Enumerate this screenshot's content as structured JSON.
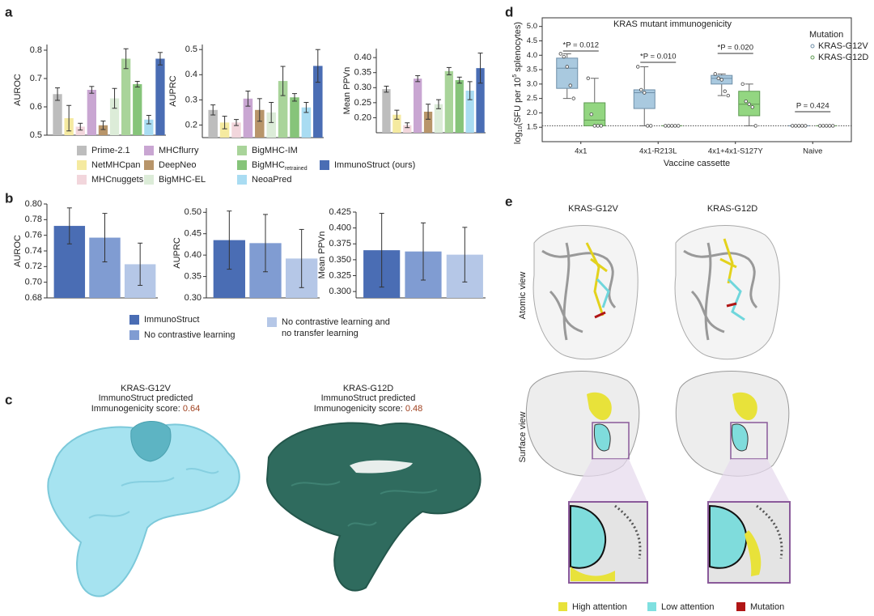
{
  "panel_letters": [
    "a",
    "b",
    "c",
    "d",
    "e"
  ],
  "panel_a_legend": [
    {
      "name": "Prime-2.1",
      "color": "#bdbdbd"
    },
    {
      "name": "NetMHCpan",
      "color": "#f5eaa0"
    },
    {
      "name": "MHCnuggets",
      "color": "#f2d6dc"
    },
    {
      "name": "MHCflurry",
      "color": "#c9a6d2"
    },
    {
      "name": "DeepNeo",
      "color": "#b8956a"
    },
    {
      "name": "BigMHC-EL",
      "color": "#dcecd8"
    },
    {
      "name": "BigMHC-IM",
      "color": "#a9d49a"
    },
    {
      "name": "BigMHC",
      "sub": "retrained",
      "color": "#86c47a"
    },
    {
      "name": "NeoaPred",
      "color": "#a9dcf2"
    },
    {
      "name": "ImmunoStruct (ours)",
      "color": "#4a6db4"
    }
  ],
  "panel_b_legend": [
    {
      "name": "ImmunoStruct",
      "color": "#4a6db4"
    },
    {
      "name": "No contrastive learning",
      "color": "#809cd2"
    },
    {
      "name_lines": [
        "No contrastive learning and",
        "no transfer learning"
      ],
      "color": "#b5c7e7"
    }
  ],
  "chart_data": [
    {
      "type": "bar",
      "ylabel": "AUROC",
      "ylim": [
        0.5,
        0.82
      ],
      "yticks": [
        0.5,
        0.6,
        0.7,
        0.8
      ],
      "values": [
        0.645,
        0.56,
        0.53,
        0.66,
        0.535,
        0.63,
        0.77,
        0.68,
        0.555,
        0.77
      ],
      "errors": [
        0.022,
        0.045,
        0.012,
        0.012,
        0.015,
        0.035,
        0.035,
        0.01,
        0.015,
        0.022
      ]
    },
    {
      "type": "bar",
      "ylabel": "AUPRC",
      "ylim": [
        0.15,
        0.52
      ],
      "yticks": [
        0.2,
        0.3,
        0.4,
        0.5
      ],
      "values": [
        0.26,
        0.21,
        0.21,
        0.305,
        0.26,
        0.25,
        0.375,
        0.31,
        0.27,
        0.435
      ],
      "errors": [
        0.02,
        0.025,
        0.012,
        0.03,
        0.045,
        0.04,
        0.058,
        0.015,
        0.02,
        0.065
      ]
    },
    {
      "type": "bar",
      "ylabel": "Mean PPVn",
      "ylim": [
        0.15,
        0.43
      ],
      "yticks": [
        {
          "value": 0.2,
          "label": "0.20"
        },
        0.25,
        {
          "value": 0.3,
          "label": "0.30"
        },
        0.35,
        {
          "value": 0.4,
          "label": "0.40"
        }
      ],
      "values": [
        0.295,
        0.21,
        0.175,
        0.33,
        0.22,
        0.245,
        0.355,
        0.325,
        0.29,
        0.365
      ],
      "errors": [
        0.01,
        0.015,
        0.008,
        0.01,
        0.025,
        0.015,
        0.012,
        0.01,
        0.03,
        0.05
      ]
    },
    {
      "type": "bar",
      "ylabel": "AUROC",
      "ylim": [
        0.68,
        0.8
      ],
      "yticks": [
        0.68,
        {
          "value": 0.7,
          "label": "0.70"
        },
        0.72,
        0.74,
        0.76,
        0.78,
        {
          "value": 0.8,
          "label": "0.80"
        }
      ],
      "values": [
        0.772,
        0.757,
        0.723
      ],
      "errors": [
        0.023,
        0.031,
        0.027
      ]
    },
    {
      "type": "bar",
      "ylabel": "AUPRC",
      "ylim": [
        0.3,
        0.51
      ],
      "yticks": [
        {
          "value": 0.3,
          "label": "0.30"
        },
        0.35,
        {
          "value": 0.4,
          "label": "0.40"
        },
        0.45,
        {
          "value": 0.5,
          "label": "0.50"
        }
      ],
      "values": [
        0.435,
        0.428,
        0.392
      ],
      "errors": [
        0.068,
        0.067,
        0.068
      ]
    },
    {
      "type": "bar",
      "ylabel": "Mean PPVn",
      "ylim": [
        0.29,
        0.425
      ],
      "yticks": [
        {
          "value": 0.3,
          "label": "0.300"
        },
        0.325,
        {
          "value": 0.35,
          "label": "0.350"
        },
        0.375,
        {
          "value": 0.4,
          "label": "0.400"
        },
        0.425
      ],
      "values": [
        0.365,
        0.363,
        0.358
      ],
      "errors": [
        0.058,
        0.045,
        0.043
      ]
    },
    {
      "type": "box",
      "title": "KRAS mutant immunogenicity",
      "ylabel": [
        "log",
        "10",
        "(SFU per 10",
        "5",
        " splenocytes)"
      ],
      "xlabel": "Vaccine cassette",
      "legend_title": "Mutation",
      "categories": [
        "4x1",
        "4x1-R213L",
        "4x1+4x1-S127Y",
        "Naive"
      ],
      "ylim": [
        1.0,
        5.3
      ],
      "yticks": [
        1.5,
        {
          "value": 2.0,
          "label": "2.0"
        },
        2.5,
        {
          "value": 3.0,
          "label": "3.0"
        },
        3.5,
        {
          "value": 4.0,
          "label": "4.0"
        },
        4.5,
        {
          "value": 5.0,
          "label": "5.0"
        }
      ],
      "reference_line": 1.55,
      "annotations": [
        "*P = 0.012",
        "*P = 0.010",
        "*P = 0.020",
        "P = 0.424"
      ],
      "series": [
        {
          "name": "KRAS-G12V",
          "color": "#a9c9df",
          "stroke": "#6f8fa8",
          "values": [
            {
              "min": 2.5,
              "q1": 2.85,
              "median": 3.55,
              "q3": 3.9,
              "max": 4.05,
              "points": [
                4.05,
                3.95,
                3.6,
                2.95,
                2.5
              ]
            },
            {
              "min": 1.55,
              "q1": 2.15,
              "median": 2.7,
              "q3": 2.8,
              "max": 3.6,
              "points": [
                3.6,
                2.8,
                2.7,
                1.55,
                1.55
              ]
            },
            {
              "min": 2.6,
              "q1": 3.0,
              "median": 3.2,
              "q3": 3.3,
              "max": 3.35,
              "points": [
                3.35,
                3.2,
                3.15,
                2.75,
                2.6
              ]
            },
            {
              "min": 1.55,
              "q1": 1.55,
              "median": 1.55,
              "q3": 1.55,
              "max": 1.55,
              "points": [
                1.55,
                1.55,
                1.55,
                1.55,
                1.55
              ]
            }
          ]
        },
        {
          "name": "KRAS-G12D",
          "color": "#93d681",
          "stroke": "#5f9a52",
          "values": [
            {
              "min": 1.55,
              "q1": 1.55,
              "median": 1.75,
              "q3": 2.35,
              "max": 3.2,
              "points": [
                3.2,
                1.95,
                1.55,
                1.55,
                1.55
              ]
            },
            {
              "min": 1.55,
              "q1": 1.55,
              "median": 1.55,
              "q3": 1.55,
              "max": 1.55,
              "points": [
                1.55,
                1.55,
                1.55,
                1.55,
                1.55
              ]
            },
            {
              "min": 1.55,
              "q1": 1.9,
              "median": 2.3,
              "q3": 2.75,
              "max": 3.0,
              "points": [
                3.0,
                2.4,
                2.3,
                2.2,
                1.55
              ]
            },
            {
              "min": 1.55,
              "q1": 1.55,
              "median": 1.55,
              "q3": 1.55,
              "max": 1.55,
              "points": [
                1.55,
                1.55,
                1.55,
                1.55,
                1.55
              ]
            }
          ]
        }
      ]
    }
  ],
  "panel_c": [
    {
      "name": "KRAS-G12V",
      "subtitle": "ImmunoStruct predicted",
      "score_label": "Immunogenicity score: ",
      "score": 0.64
    },
    {
      "name": "KRAS-G12D",
      "subtitle": "ImmunoStruct predicted",
      "score_label": "Immunogenicity score: ",
      "score": 0.48
    }
  ],
  "panel_e": {
    "columns": [
      "KRAS-G12V",
      "KRAS-G12D"
    ],
    "rows": [
      "Atomic view",
      "Surface view"
    ],
    "legend": [
      {
        "name": "High attention",
        "color": "#e8e23a"
      },
      {
        "name": "Low attention",
        "color": "#7fe0e0"
      },
      {
        "name": "Mutation",
        "color": "#b01515"
      }
    ]
  }
}
